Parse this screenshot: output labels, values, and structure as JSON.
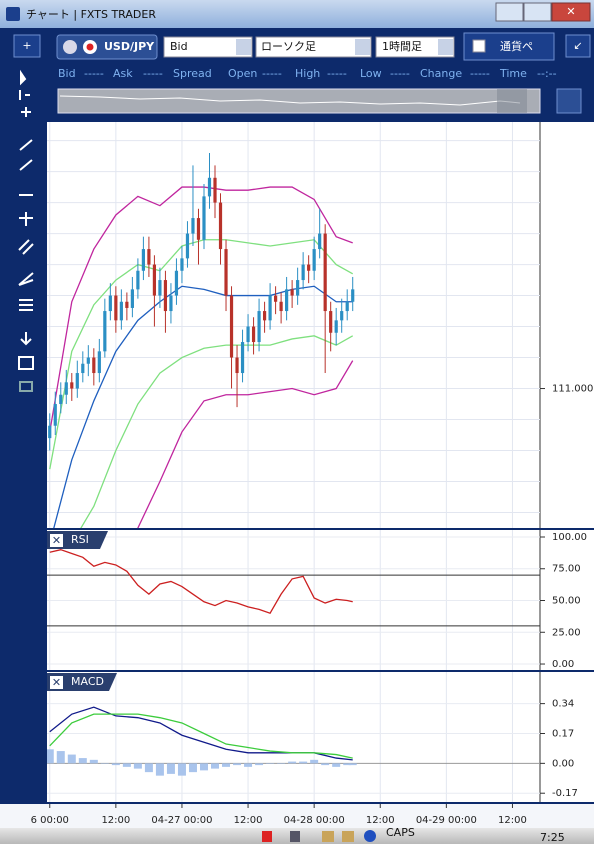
{
  "window": {
    "title": "チャート | FXTS TRADER"
  },
  "toolbar": {
    "symbol": "USD/JPY",
    "price_side": "Bid",
    "chart_type": "ローソク足",
    "period": "1時間足",
    "pair_button": "通貨ペ"
  },
  "quote_bar": [
    "Bid",
    "-----",
    "Ask",
    "-----",
    "Spread",
    "Open",
    "-----",
    "High",
    "-----",
    "Low",
    "-----",
    "Change",
    "-----",
    "Time",
    "--:--"
  ],
  "taskbar": {
    "caps": "CAPS",
    "clock": "7:25"
  },
  "chart_data": [
    {
      "type": "candlestick",
      "x": [
        0,
        1,
        2,
        3,
        4,
        5,
        6,
        7,
        8,
        9,
        10,
        11,
        12,
        13,
        14,
        15,
        16,
        17,
        18,
        19,
        20,
        21,
        22,
        23,
        24,
        25,
        26,
        27,
        28,
        29,
        30,
        31,
        32,
        33,
        34,
        35,
        36,
        37,
        38,
        39,
        40,
        41,
        42,
        43,
        44,
        45,
        46,
        47,
        48,
        49,
        50,
        51,
        52,
        53,
        54,
        55
      ],
      "open": [
        110.84,
        110.88,
        110.95,
        110.98,
        111.02,
        111.0,
        111.05,
        111.08,
        111.1,
        111.05,
        111.12,
        111.25,
        111.3,
        111.22,
        111.28,
        111.26,
        111.32,
        111.38,
        111.45,
        111.4,
        111.3,
        111.35,
        111.25,
        111.3,
        111.38,
        111.42,
        111.5,
        111.55,
        111.48,
        111.62,
        111.68,
        111.6,
        111.45,
        111.3,
        111.1,
        111.05,
        111.15,
        111.2,
        111.15,
        111.25,
        111.22,
        111.3,
        111.28,
        111.25,
        111.32,
        111.3,
        111.35,
        111.4,
        111.38,
        111.45,
        111.5,
        111.25,
        111.18,
        111.22,
        111.25,
        111.28
      ],
      "high": [
        110.92,
        110.99,
        111.02,
        111.06,
        111.05,
        111.09,
        111.12,
        111.14,
        111.13,
        111.16,
        111.29,
        111.34,
        111.33,
        111.32,
        111.31,
        111.36,
        111.42,
        111.49,
        111.49,
        111.43,
        111.39,
        111.38,
        111.34,
        111.42,
        111.46,
        111.54,
        111.72,
        111.58,
        111.66,
        111.76,
        111.72,
        111.63,
        111.48,
        111.33,
        111.14,
        111.19,
        111.24,
        111.23,
        111.29,
        111.28,
        111.34,
        111.33,
        111.31,
        111.36,
        111.35,
        111.39,
        111.44,
        111.43,
        111.49,
        111.58,
        111.53,
        111.28,
        111.26,
        111.29,
        111.32,
        111.36
      ],
      "low": [
        110.8,
        110.85,
        110.92,
        110.95,
        110.96,
        110.97,
        111.02,
        111.04,
        111.01,
        111.02,
        111.1,
        111.22,
        111.18,
        111.19,
        111.22,
        111.23,
        111.29,
        111.35,
        111.36,
        111.2,
        111.26,
        111.18,
        111.21,
        111.27,
        111.34,
        111.39,
        111.46,
        111.4,
        111.45,
        111.58,
        111.55,
        111.4,
        111.25,
        111.0,
        110.94,
        111.02,
        111.12,
        111.11,
        111.12,
        111.18,
        111.19,
        111.24,
        111.21,
        111.22,
        111.26,
        111.27,
        111.32,
        111.34,
        111.35,
        111.42,
        111.05,
        111.12,
        111.14,
        111.18,
        111.22,
        111.25
      ],
      "close": [
        110.88,
        110.95,
        110.98,
        111.02,
        111.0,
        111.05,
        111.08,
        111.1,
        111.05,
        111.12,
        111.25,
        111.3,
        111.22,
        111.28,
        111.26,
        111.32,
        111.38,
        111.45,
        111.4,
        111.3,
        111.35,
        111.25,
        111.3,
        111.38,
        111.42,
        111.5,
        111.55,
        111.48,
        111.62,
        111.68,
        111.6,
        111.45,
        111.3,
        111.1,
        111.05,
        111.15,
        111.2,
        111.15,
        111.25,
        111.22,
        111.3,
        111.28,
        111.25,
        111.32,
        111.3,
        111.35,
        111.4,
        111.38,
        111.45,
        111.5,
        111.25,
        111.18,
        111.22,
        111.25,
        111.28,
        111.32
      ],
      "color_up": "#2b8fc4",
      "color_down": "#b8322a",
      "bands": {
        "x": [
          0,
          4,
          8,
          12,
          16,
          20,
          24,
          28,
          32,
          36,
          40,
          44,
          48,
          52,
          55
        ],
        "series": [
          {
            "color": "#c0269e",
            "values": [
              110.86,
              111.28,
              111.45,
              111.56,
              111.62,
              111.59,
              111.65,
              111.65,
              111.64,
              111.64,
              111.65,
              111.65,
              111.61,
              111.49,
              111.47
            ]
          },
          {
            "color": "#7fe07f",
            "values": [
              110.74,
              111.12,
              111.27,
              111.35,
              111.4,
              111.38,
              111.46,
              111.48,
              111.48,
              111.47,
              111.46,
              111.47,
              111.48,
              111.4,
              111.37
            ]
          },
          {
            "color": "#1f5fbf",
            "values": [
              110.5,
              110.77,
              110.96,
              111.12,
              111.22,
              111.28,
              111.33,
              111.32,
              111.3,
              111.3,
              111.3,
              111.32,
              111.33,
              111.28,
              111.28
            ]
          },
          {
            "color": "#7fe07f",
            "values": [
              110.2,
              110.5,
              110.62,
              110.8,
              110.95,
              111.05,
              111.1,
              111.13,
              111.14,
              111.14,
              111.14,
              111.16,
              111.17,
              111.14,
              111.17
            ]
          },
          {
            "color": "#c0269e",
            "values": [
              109.9,
              110.1,
              110.25,
              110.4,
              110.55,
              110.7,
              110.86,
              110.96,
              110.98,
              110.98,
              110.99,
              111.0,
              110.98,
              111.0,
              111.09
            ]
          }
        ]
      },
      "xlim": [
        -0.5,
        89
      ],
      "ylim": [
        110.55,
        111.86
      ],
      "yticks": [
        {
          "value": 111,
          "label": "111.000"
        }
      ],
      "ygrid": [
        110.6,
        110.7,
        110.8,
        110.9,
        111.0,
        111.1,
        111.2,
        111.3,
        111.4,
        111.5,
        111.6,
        111.7,
        111.8
      ]
    },
    {
      "type": "line",
      "label": "RSI",
      "x": [
        0,
        2,
        4,
        6,
        8,
        10,
        12,
        14,
        16,
        18,
        20,
        22,
        24,
        26,
        28,
        30,
        32,
        34,
        36,
        38,
        40,
        42,
        44,
        46,
        48,
        50,
        52,
        54,
        55
      ],
      "series": [
        {
          "color": "#cc2020",
          "values": [
            88,
            90,
            87,
            84,
            77,
            80,
            78,
            73,
            62,
            55,
            63,
            65,
            61,
            55,
            49,
            46,
            50,
            48,
            45,
            43,
            40,
            55,
            67,
            69,
            52,
            48,
            51,
            50,
            49
          ]
        }
      ],
      "levels": [
        70,
        30
      ],
      "xlim": [
        -0.5,
        89
      ],
      "ylim": [
        -4.7,
        105.5
      ],
      "yticks": [
        {
          "value": 100,
          "label": "100.00"
        },
        {
          "value": 75,
          "label": "75.00"
        },
        {
          "value": 50,
          "label": "50.00"
        },
        {
          "value": 25,
          "label": "25.00"
        },
        {
          "value": 0,
          "label": "0.00"
        }
      ]
    },
    {
      "type": "line",
      "label": "MACD",
      "x": [
        0,
        4,
        8,
        12,
        16,
        20,
        24,
        28,
        32,
        36,
        40,
        44,
        48,
        52,
        55
      ],
      "series": [
        {
          "color": "#101a8a",
          "values": [
            0.18,
            0.28,
            0.32,
            0.27,
            0.26,
            0.23,
            0.16,
            0.12,
            0.08,
            0.06,
            0.06,
            0.06,
            0.06,
            0.03,
            0.02
          ]
        },
        {
          "color": "#3ccc3c",
          "values": [
            0.1,
            0.23,
            0.28,
            0.28,
            0.28,
            0.26,
            0.23,
            0.17,
            0.11,
            0.09,
            0.07,
            0.06,
            0.06,
            0.05,
            0.03
          ]
        }
      ],
      "bars": {
        "color": "#a9c4ec",
        "x": [
          0,
          2,
          4,
          6,
          8,
          10,
          12,
          14,
          16,
          18,
          20,
          22,
          24,
          26,
          28,
          30,
          32,
          34,
          36,
          38,
          40,
          42,
          44,
          46,
          48,
          50,
          52,
          54,
          55
        ],
        "values": [
          0.08,
          0.07,
          0.05,
          0.03,
          0.02,
          0.0,
          -0.01,
          -0.02,
          -0.03,
          -0.05,
          -0.07,
          -0.06,
          -0.07,
          -0.05,
          -0.04,
          -0.03,
          -0.02,
          -0.01,
          -0.02,
          -0.01,
          0.0,
          0.0,
          0.01,
          0.01,
          0.02,
          -0.01,
          -0.02,
          -0.01,
          -0.01
        ]
      },
      "xlim": [
        -0.5,
        89
      ],
      "ylim": [
        -0.22,
        0.52
      ],
      "yticks": [
        0.34,
        0.17,
        {
          "value": 0,
          "label": "0.00"
        },
        -0.17
      ],
      "xticks": [
        {
          "value": 0,
          "label": "6 00:00"
        },
        {
          "value": 12,
          "label": "12:00"
        },
        {
          "value": 24,
          "label": "04-27 00:00"
        },
        {
          "value": 36,
          "label": "12:00"
        },
        {
          "value": 48,
          "label": "04-28 00:00"
        },
        {
          "value": 60,
          "label": "12:00"
        },
        {
          "value": 72,
          "label": "04-29 00:00"
        },
        {
          "value": 84,
          "label": "12:00"
        }
      ]
    }
  ]
}
